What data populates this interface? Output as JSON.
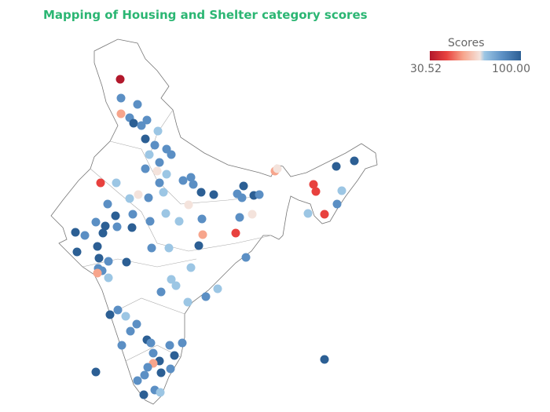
{
  "title": "Mapping of Housing and Shelter category scores",
  "legend": {
    "title": "Scores",
    "min_label": "30.52",
    "max_label": "100.00",
    "min": 30.52,
    "max": 100.0,
    "colors": [
      "#b2182b",
      "#e8413e",
      "#f7a58c",
      "#f4e3dc",
      "#9cc6e4",
      "#5b8fc4",
      "#2c5f94"
    ]
  },
  "outline_color": "#777777",
  "points": [
    31,
    85,
    85,
    55,
    85,
    95,
    85,
    85,
    75,
    95,
    85,
    85,
    75,
    85,
    85,
    85,
    65,
    75,
    45,
    75,
    65,
    85,
    75,
    85,
    85,
    85,
    95,
    95,
    65,
    75,
    75,
    85,
    75,
    85,
    95,
    85,
    95,
    85,
    85,
    95,
    95,
    85,
    95,
    85,
    95,
    95,
    85,
    95,
    95,
    85,
    85,
    55,
    75,
    85,
    75,
    95,
    55,
    45,
    85,
    85,
    95,
    85,
    95,
    85,
    70,
    85,
    85,
    55,
    65,
    45,
    45,
    95,
    95,
    75,
    75,
    45,
    85,
    75,
    75,
    75,
    85,
    75,
    85,
    75,
    95,
    85,
    75,
    85,
    85,
    85,
    95,
    85,
    85,
    95,
    85,
    85,
    95,
    55,
    85,
    85,
    95,
    85,
    95,
    85,
    85,
    95,
    75,
    95
  ]
}
